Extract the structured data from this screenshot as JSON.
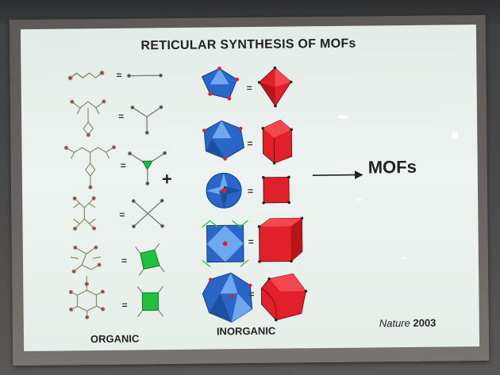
{
  "slide": {
    "title": "RETICULAR SYNTHESIS OF MOFs",
    "organic_caption": "ORGANIC",
    "inorganic_caption": "INORGANIC",
    "result_label": "MOFs",
    "equals_sign": "=",
    "plus_sign": "+",
    "citation": {
      "journal": "Nature",
      "year": "2003"
    }
  },
  "colors": {
    "screen": "#e9f1ee",
    "polyhedron_red": "#e0202a",
    "cluster_blue": "#2a66c8",
    "node_green": "#22c040",
    "linker": "#8a8a6a"
  }
}
